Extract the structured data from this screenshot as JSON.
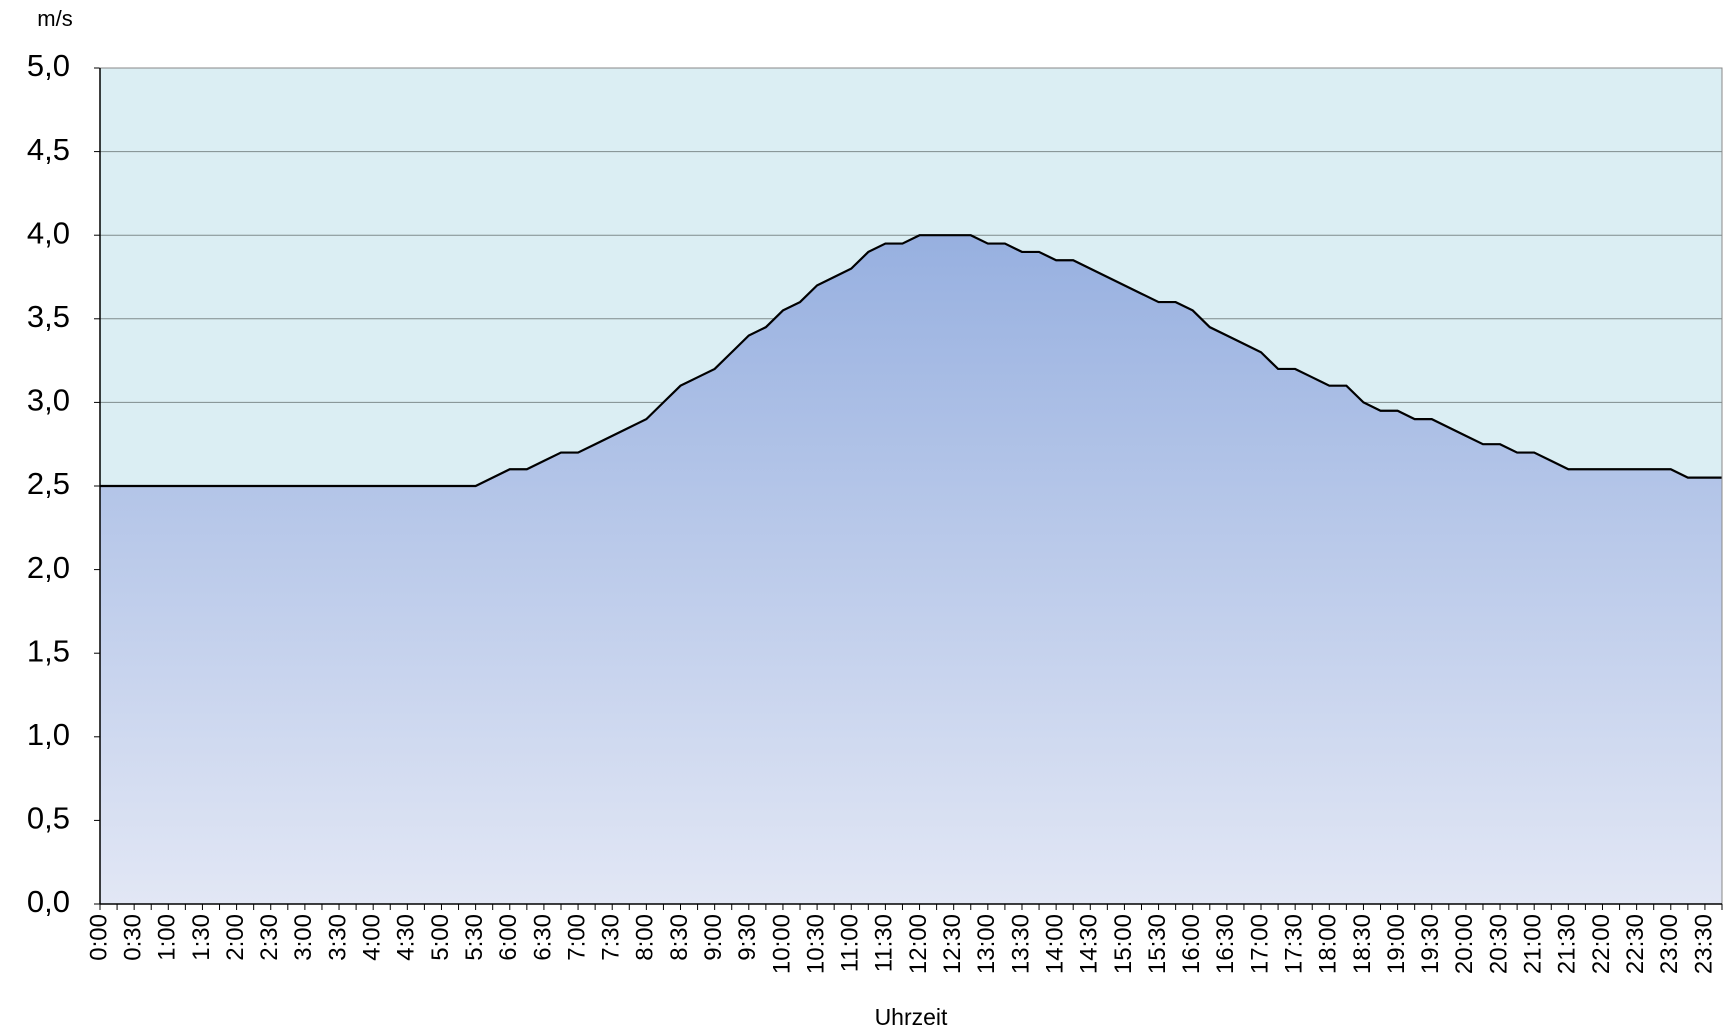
{
  "chart_data": {
    "type": "area",
    "y_unit": "m/s",
    "x_label": "Uhrzeit",
    "categories": [
      "0:00",
      null,
      "0:30",
      null,
      "1:00",
      null,
      "1:30",
      null,
      "2:00",
      null,
      "2:30",
      null,
      "3:00",
      null,
      "3:30",
      null,
      "4:00",
      null,
      "4:30",
      null,
      "5:00",
      null,
      "5:30",
      null,
      "6:00",
      null,
      "6:30",
      null,
      "7:00",
      null,
      "7:30",
      null,
      "8:00",
      null,
      "8:30",
      null,
      "9:00",
      null,
      "9:30",
      null,
      "10:00",
      null,
      "10:30",
      null,
      "11:00",
      null,
      "11:30",
      null,
      "12:00",
      null,
      "12:30",
      null,
      "13:00",
      null,
      "13:30",
      null,
      "14:00",
      null,
      "14:30",
      null,
      "15:00",
      null,
      "15:30",
      null,
      "16:00",
      null,
      "16:30",
      null,
      "17:00",
      null,
      "17:30",
      null,
      "18:00",
      null,
      "18:30",
      null,
      "19:00",
      null,
      "19:30",
      null,
      "20:00",
      null,
      "20:30",
      null,
      "21:00",
      null,
      "21:30",
      null,
      "22:00",
      null,
      "22:30",
      null,
      "23:00",
      null,
      "23:30",
      null
    ],
    "values": [
      2.5,
      2.5,
      2.5,
      2.5,
      2.5,
      2.5,
      2.5,
      2.5,
      2.5,
      2.5,
      2.5,
      2.5,
      2.5,
      2.5,
      2.5,
      2.5,
      2.5,
      2.5,
      2.5,
      2.5,
      2.5,
      2.5,
      2.5,
      2.55,
      2.6,
      2.6,
      2.65,
      2.7,
      2.7,
      2.75,
      2.8,
      2.85,
      2.9,
      3.0,
      3.1,
      3.15,
      3.2,
      3.3,
      3.4,
      3.45,
      3.55,
      3.6,
      3.7,
      3.75,
      3.8,
      3.9,
      3.95,
      3.95,
      4.0,
      4.0,
      4.0,
      4.0,
      3.95,
      3.95,
      3.9,
      3.9,
      3.85,
      3.85,
      3.8,
      3.75,
      3.7,
      3.65,
      3.6,
      3.6,
      3.55,
      3.45,
      3.4,
      3.35,
      3.3,
      3.2,
      3.2,
      3.15,
      3.1,
      3.1,
      3.0,
      2.95,
      2.95,
      2.9,
      2.9,
      2.85,
      2.8,
      2.75,
      2.75,
      2.7,
      2.7,
      2.65,
      2.6,
      2.6,
      2.6,
      2.6,
      2.6,
      2.6,
      2.6,
      2.55,
      2.55,
      2.55
    ],
    "color": "#97b0e0",
    "line_color": "#000000",
    "background": "#dbeef3",
    "ylim": [
      0,
      5
    ],
    "yticks": [
      {
        "value": 0,
        "label": "0,0"
      },
      {
        "value": 0.5,
        "label": "0,5"
      },
      {
        "value": 1,
        "label": "1,0"
      },
      {
        "value": 1.5,
        "label": "1,5"
      },
      {
        "value": 2,
        "label": "2,0"
      },
      {
        "value": 2.5,
        "label": "2,5"
      },
      {
        "value": 3,
        "label": "3,0"
      },
      {
        "value": 3.5,
        "label": "3,5"
      },
      {
        "value": 4,
        "label": "4,0"
      },
      {
        "value": 4.5,
        "label": "4,5"
      },
      {
        "value": 5,
        "label": "5,0"
      }
    ],
    "grid": true
  }
}
